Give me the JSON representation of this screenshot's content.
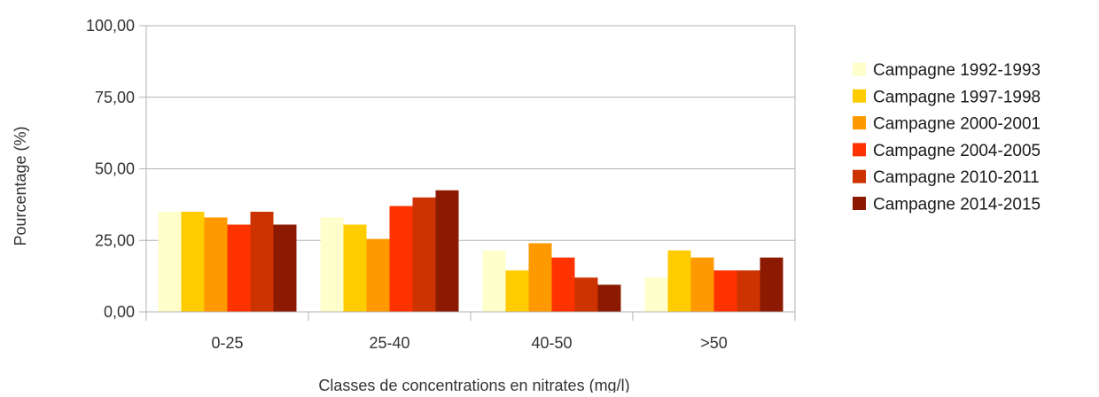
{
  "chart_data": {
    "type": "bar",
    "title": "",
    "xlabel": "Classes de concentrations en nitrates (mg/l)",
    "ylabel": "Pourcentage (%)",
    "ylim": [
      0,
      100
    ],
    "yticks": [
      "0,00",
      "25,00",
      "50,00",
      "75,00",
      "100,00"
    ],
    "ytick_values": [
      0,
      25,
      50,
      75,
      100
    ],
    "grid": "horizontal",
    "legend_position": "right",
    "categories": [
      "0-25",
      "25-40",
      "40-50",
      ">50"
    ],
    "series": [
      {
        "name": "Campagne 1992-1993",
        "color": "#ffffcc",
        "values": [
          35,
          33,
          21.5,
          12
        ]
      },
      {
        "name": "Campagne 1997-1998",
        "color": "#ffcc00",
        "values": [
          35,
          30.5,
          14.5,
          21.5
        ]
      },
      {
        "name": "Campagne 2000-2001",
        "color": "#ff9900",
        "values": [
          33,
          25.5,
          24,
          19
        ]
      },
      {
        "name": "Campagne 2004-2005",
        "color": "#ff3300",
        "values": [
          30.5,
          37,
          19,
          14.5
        ]
      },
      {
        "name": "Campagne 2010-2011",
        "color": "#cc3300",
        "values": [
          35,
          40,
          12,
          14.5
        ]
      },
      {
        "name": "Campagne 2014-2015",
        "color": "#8b1a00",
        "values": [
          30.5,
          42.5,
          9.5,
          19
        ]
      }
    ]
  }
}
